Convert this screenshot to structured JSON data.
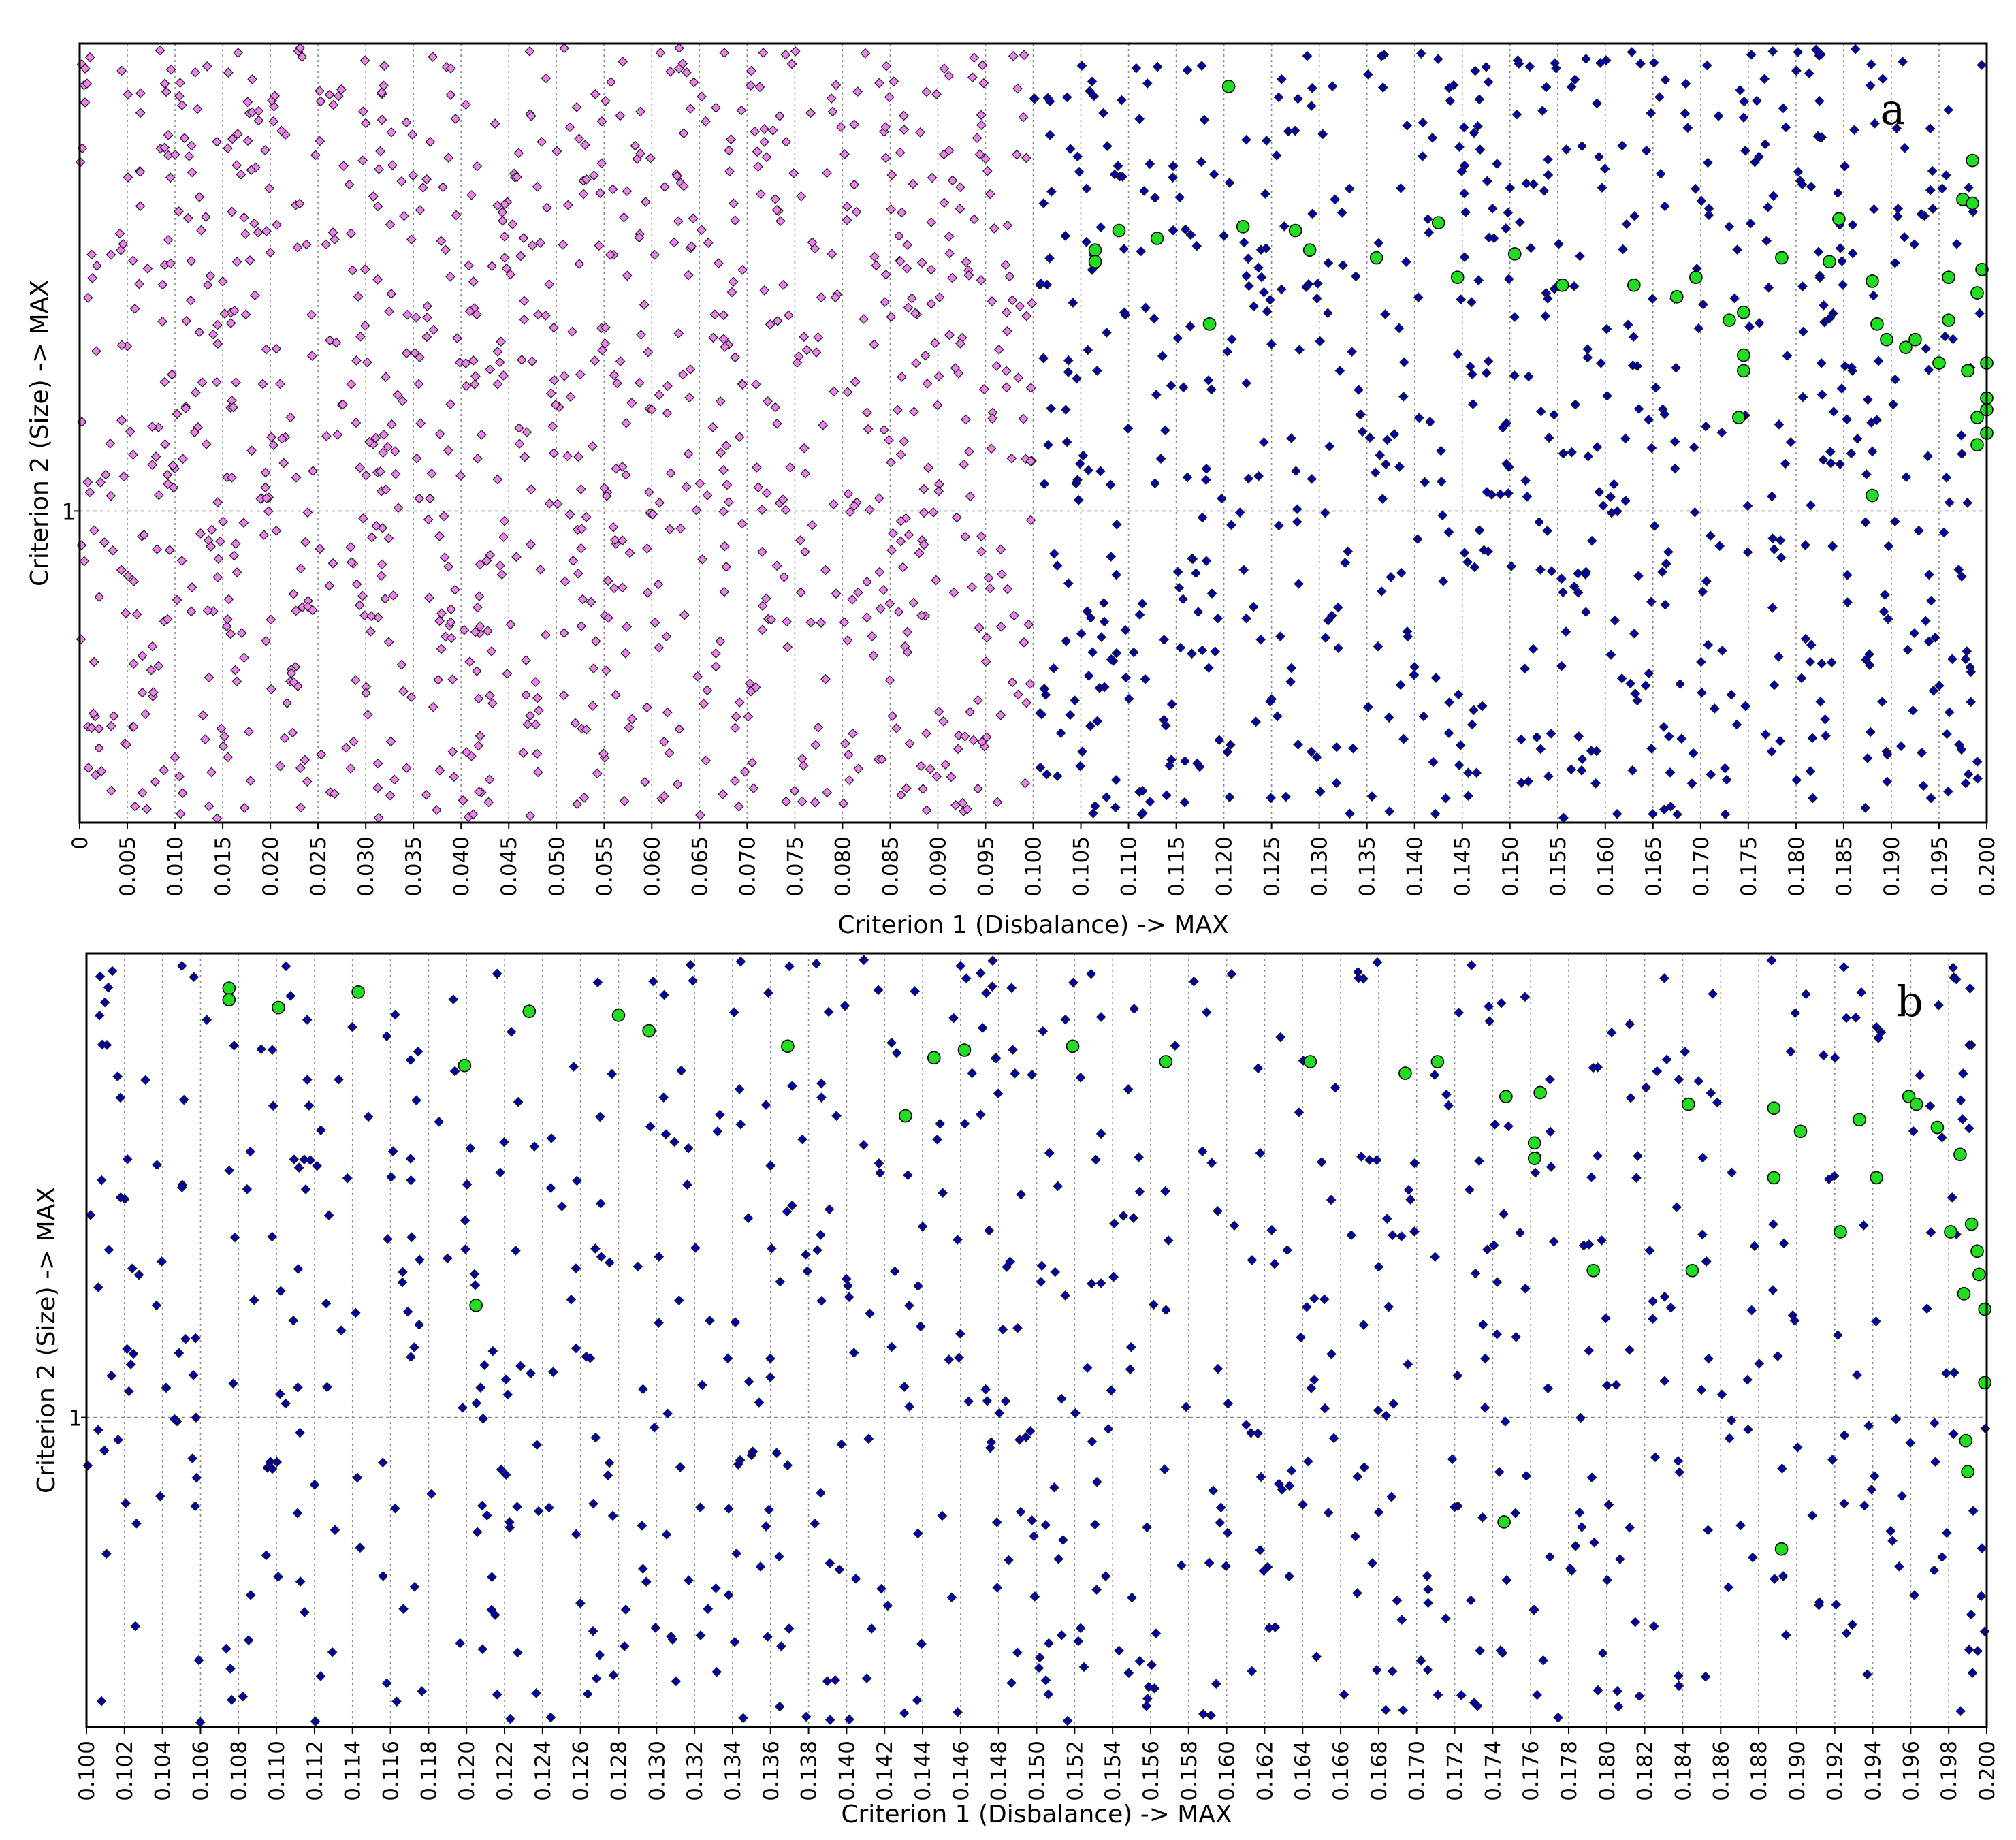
{
  "chart_data": [
    {
      "panel": "a",
      "type": "scatter",
      "xlabel": "Criterion 1 (Disbalance) -> MAX",
      "ylabel": "Criterion 2 (Size) -> MAX",
      "xlim": [
        0,
        0.2
      ],
      "x_tick_step": 0.005,
      "x_tick_decimals": 3,
      "y_mark": "1",
      "grid": true,
      "series": [
        {
          "marker": "diamond",
          "color": "#ee82ee",
          "x_range": [
            0.0,
            0.1
          ],
          "count": 1150,
          "seed": 11
        },
        {
          "marker": "diamond",
          "color": "#0000aa",
          "x_range": [
            0.1,
            0.2
          ],
          "count": 780,
          "seed": 23
        },
        {
          "marker": "circle",
          "color": "#22dd22",
          "points": [
            [
              0.1065,
              0.265
            ],
            [
              0.1065,
              0.28
            ],
            [
              0.109,
              0.24
            ],
            [
              0.113,
              0.25
            ],
            [
              0.1185,
              0.36
            ],
            [
              0.1205,
              0.055
            ],
            [
              0.122,
              0.235
            ],
            [
              0.1275,
              0.24
            ],
            [
              0.129,
              0.265
            ],
            [
              0.136,
              0.275
            ],
            [
              0.1425,
              0.23
            ],
            [
              0.1445,
              0.3
            ],
            [
              0.1505,
              0.27
            ],
            [
              0.1555,
              0.31
            ],
            [
              0.163,
              0.31
            ],
            [
              0.1675,
              0.325
            ],
            [
              0.1695,
              0.3
            ],
            [
              0.173,
              0.355
            ],
            [
              0.1745,
              0.345
            ],
            [
              0.1745,
              0.42
            ],
            [
              0.1745,
              0.4
            ],
            [
              0.1785,
              0.275
            ],
            [
              0.1835,
              0.28
            ],
            [
              0.1845,
              0.225
            ],
            [
              0.188,
              0.305
            ],
            [
              0.1885,
              0.36
            ],
            [
              0.1895,
              0.38
            ],
            [
              0.1915,
              0.39
            ],
            [
              0.1925,
              0.38
            ],
            [
              0.195,
              0.41
            ],
            [
              0.196,
              0.355
            ],
            [
              0.1975,
              0.2
            ],
            [
              0.1985,
              0.205
            ],
            [
              0.1985,
              0.15
            ],
            [
              0.199,
              0.32
            ],
            [
              0.199,
              0.48
            ],
            [
              0.199,
              0.515
            ],
            [
              0.1995,
              0.29
            ],
            [
              0.2,
              0.41
            ],
            [
              0.2,
              0.455
            ],
            [
              0.2,
              0.5
            ],
            [
              0.2,
              0.47
            ],
            [
              0.174,
              0.48
            ],
            [
              0.188,
              0.58
            ],
            [
              0.198,
              0.42
            ],
            [
              0.196,
              0.3
            ]
          ]
        }
      ]
    },
    {
      "panel": "b",
      "type": "scatter",
      "xlabel": "Criterion 1 (Disbalance) -> MAX",
      "ylabel": "Criterion 2 (Size) -> MAX",
      "xlim": [
        0.1,
        0.2
      ],
      "x_tick_step": 0.002,
      "x_tick_decimals": 3,
      "y_mark": "1",
      "grid": true,
      "series": [
        {
          "marker": "diamond",
          "color": "#0000aa",
          "x_range": [
            0.1,
            0.2
          ],
          "count": 800,
          "seed": 37
        },
        {
          "marker": "circle",
          "color": "#22dd22",
          "points": [
            [
              0.1075,
              0.045
            ],
            [
              0.1075,
              0.06
            ],
            [
              0.1101,
              0.07
            ],
            [
              0.1143,
              0.05
            ],
            [
              0.1199,
              0.145
            ],
            [
              0.1205,
              0.455
            ],
            [
              0.1233,
              0.075
            ],
            [
              0.128,
              0.08
            ],
            [
              0.1296,
              0.1
            ],
            [
              0.1369,
              0.12
            ],
            [
              0.1431,
              0.21
            ],
            [
              0.1446,
              0.135
            ],
            [
              0.1462,
              0.125
            ],
            [
              0.1519,
              0.12
            ],
            [
              0.1568,
              0.14
            ],
            [
              0.1644,
              0.14
            ],
            [
              0.1694,
              0.155
            ],
            [
              0.1711,
              0.14
            ],
            [
              0.1747,
              0.185
            ],
            [
              0.1762,
              0.245
            ],
            [
              0.1762,
              0.265
            ],
            [
              0.1765,
              0.18
            ],
            [
              0.1746,
              0.735
            ],
            [
              0.1793,
              0.41
            ],
            [
              0.1843,
              0.195
            ],
            [
              0.1845,
              0.41
            ],
            [
              0.1888,
              0.2
            ],
            [
              0.1888,
              0.29
            ],
            [
              0.1892,
              0.77
            ],
            [
              0.1902,
              0.23
            ],
            [
              0.1923,
              0.36
            ],
            [
              0.1933,
              0.215
            ],
            [
              0.1942,
              0.29
            ],
            [
              0.1959,
              0.185
            ],
            [
              0.1974,
              0.225
            ],
            [
              0.1981,
              0.36
            ],
            [
              0.1988,
              0.44
            ],
            [
              0.1989,
              0.63
            ],
            [
              0.199,
              0.67
            ],
            [
              0.1992,
              0.35
            ],
            [
              0.1995,
              0.385
            ],
            [
              0.1996,
              0.415
            ],
            [
              0.1999,
              0.46
            ],
            [
              0.1999,
              0.555
            ],
            [
              0.1986,
              0.26
            ],
            [
              0.1963,
              0.195
            ]
          ]
        }
      ]
    }
  ]
}
